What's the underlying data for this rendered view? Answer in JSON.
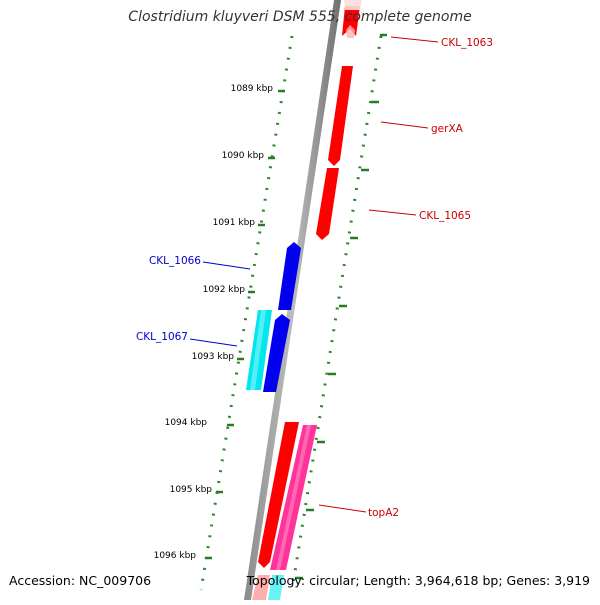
{
  "title": "Clostridium kluyveri DSM 555, complete genome",
  "footer": {
    "accession": "Accession: NC_009706",
    "topology": "Topology: circular; Length: 3,964,618 bp; Genes: 3,919"
  },
  "ruler": [
    {
      "label": "1089 kbp"
    },
    {
      "label": "1090 kbp"
    },
    {
      "label": "1091 kbp"
    },
    {
      "label": "1092 kbp"
    },
    {
      "label": "1093 kbp"
    },
    {
      "label": "1094 kbp"
    },
    {
      "label": "1095 kbp"
    },
    {
      "label": "1096 kbp"
    }
  ],
  "genes": [
    {
      "name": "CKL_1063",
      "color": "#ff0000",
      "label_color": "#cc0000",
      "strand": "reverse",
      "lane": "outer-right"
    },
    {
      "name": "gerXA",
      "color": "#ff0000",
      "label_color": "#cc0000",
      "strand": "reverse",
      "lane": "outer-right"
    },
    {
      "name": "CKL_1065",
      "color": "#ff0000",
      "label_color": "#cc0000",
      "strand": "reverse",
      "lane": "outer-right"
    },
    {
      "name": "CKL_1066",
      "color": "#0000ee",
      "label_color": "#0000cc",
      "strand": "forward",
      "lane": "inner-left"
    },
    {
      "name": "CKL_1067",
      "color": "#00e5ee",
      "label_color": "#0000cc",
      "strand": "forward",
      "lane": "outer-left"
    },
    {
      "name": "topA2",
      "color": "#ff3399",
      "label_color": "#cc0000",
      "strand": "forward",
      "lane": "outer-right"
    }
  ],
  "unlabeled_features": [
    {
      "color": "#ff0000",
      "strand": "reverse"
    },
    {
      "color": "#0000ee",
      "strand": "forward"
    },
    {
      "color": "#00e5ee",
      "strand": "forward"
    }
  ]
}
